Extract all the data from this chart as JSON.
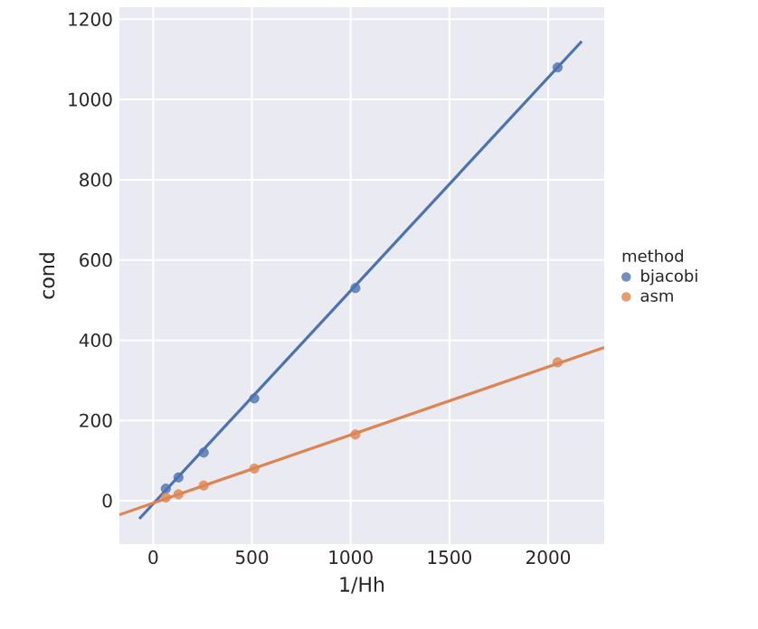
{
  "chart_data": {
    "type": "scatter",
    "xlabel": "1/Hh",
    "ylabel": "cond",
    "legend_title": "method",
    "legend": "right",
    "grid": true,
    "marker": "circle",
    "xlim": [
      -171,
      2284
    ],
    "ylim": [
      -108,
      1230
    ],
    "xticks": [
      0,
      500,
      1000,
      1500,
      2000
    ],
    "yticks": [
      0,
      200,
      400,
      600,
      800,
      1000,
      1200
    ],
    "series": [
      {
        "name": "bjacobi",
        "color": "#4c72b0",
        "x": [
          64,
          128,
          256,
          512,
          1024,
          2048
        ],
        "values": [
          30,
          58,
          120,
          255,
          530,
          1080
        ]
      },
      {
        "name": "asm",
        "color": "#dd8452",
        "x": [
          64,
          128,
          256,
          512,
          1024,
          2048
        ],
        "values": [
          8,
          16,
          38,
          80,
          165,
          345
        ]
      },
      {
        "type": "line",
        "marker": "none",
        "color": "#4c72b0",
        "x": [
          -70,
          2170
        ],
        "values": [
          -45,
          1145
        ]
      },
      {
        "type": "line",
        "marker": "none",
        "color": "#dd8452",
        "x": [
          -171,
          2284
        ],
        "values": [
          -35,
          382
        ]
      }
    ]
  }
}
